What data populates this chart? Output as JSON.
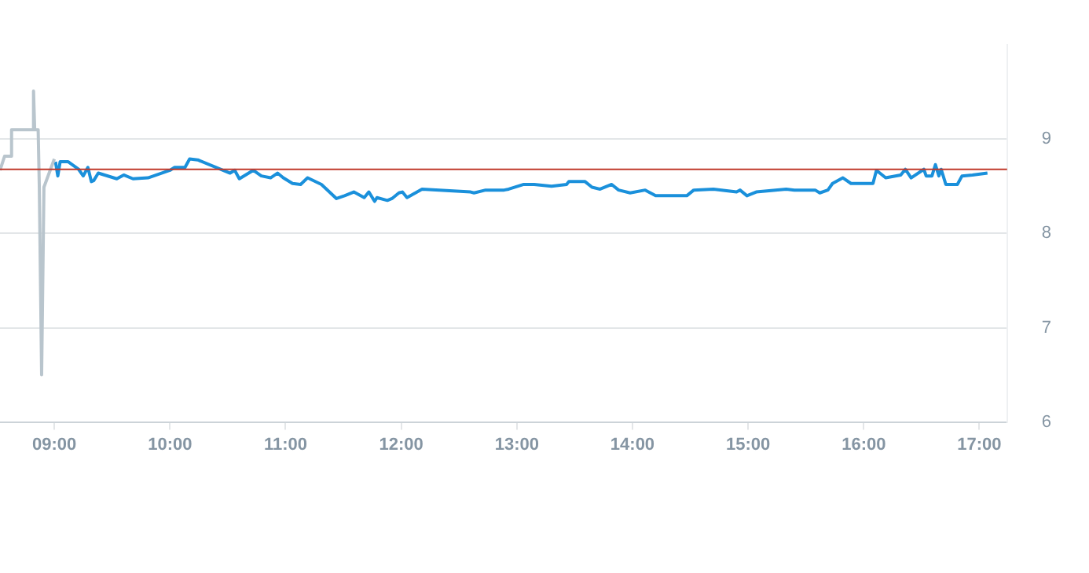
{
  "chart_data": {
    "type": "line",
    "xlim": [
      8.53,
      17.24
    ],
    "ylim": [
      6,
      10
    ],
    "xticks": [
      {
        "value": 9,
        "label": "09:00"
      },
      {
        "value": 10,
        "label": "10:00"
      },
      {
        "value": 11,
        "label": "11:00"
      },
      {
        "value": 12,
        "label": "12:00"
      },
      {
        "value": 13,
        "label": "13:00"
      },
      {
        "value": 14,
        "label": "14:00"
      },
      {
        "value": 15,
        "label": "15:00"
      },
      {
        "value": 16,
        "label": "16:00"
      },
      {
        "value": 17,
        "label": "17:00"
      }
    ],
    "yticks": [
      6,
      7,
      8,
      9
    ],
    "grid": "y",
    "legend": false,
    "marker": "none",
    "line_style": "solid",
    "ref_lines": [
      {
        "axis": "y",
        "value": 8.68,
        "color": "#c0392b"
      }
    ],
    "series": [
      {
        "color": "#b9c5cd",
        "x": [
          8.53,
          8.57,
          8.63,
          8.63,
          8.82,
          8.82,
          8.83,
          8.86,
          8.87,
          8.89,
          8.91,
          9.0
        ],
        "values": [
          8.67,
          8.82,
          8.82,
          9.1,
          9.1,
          9.51,
          9.1,
          9.1,
          8.49,
          6.5,
          8.49,
          8.79
        ]
      },
      {
        "color": "#1a90db",
        "x": [
          9.01,
          9.03,
          9.05,
          9.12,
          9.21,
          9.25,
          9.29,
          9.32,
          9.34,
          9.38,
          9.54,
          9.6,
          9.68,
          9.81,
          10.0,
          10.04,
          10.13,
          10.17,
          10.24,
          10.52,
          10.56,
          10.6,
          10.72,
          10.79,
          10.87,
          10.93,
          10.98,
          11.06,
          11.13,
          11.19,
          11.31,
          11.44,
          11.51,
          11.59,
          11.68,
          11.72,
          11.77,
          11.79,
          11.88,
          11.92,
          11.98,
          12.01,
          12.05,
          12.18,
          12.6,
          12.63,
          12.73,
          12.89,
          12.93,
          13.06,
          13.15,
          13.3,
          13.43,
          13.45,
          13.59,
          13.65,
          13.72,
          13.82,
          13.88,
          13.98,
          14.11,
          14.2,
          14.47,
          14.53,
          14.7,
          14.9,
          14.93,
          14.99,
          15.07,
          15.33,
          15.4,
          15.58,
          15.62,
          15.69,
          15.73,
          15.82,
          15.89,
          16.08,
          16.11,
          16.19,
          16.32,
          16.36,
          16.41,
          16.52,
          16.54,
          16.59,
          16.62,
          16.65,
          16.67,
          16.71,
          16.81,
          16.85,
          16.94,
          17.07
        ],
        "values": [
          8.76,
          8.61,
          8.76,
          8.76,
          8.68,
          8.61,
          8.7,
          8.55,
          8.56,
          8.64,
          8.58,
          8.62,
          8.58,
          8.59,
          8.67,
          8.7,
          8.7,
          8.79,
          8.78,
          8.64,
          8.67,
          8.58,
          8.67,
          8.61,
          8.59,
          8.64,
          8.59,
          8.53,
          8.52,
          8.59,
          8.52,
          8.37,
          8.4,
          8.44,
          8.38,
          8.44,
          8.34,
          8.38,
          8.35,
          8.37,
          8.43,
          8.44,
          8.38,
          8.47,
          8.44,
          8.43,
          8.46,
          8.46,
          8.47,
          8.52,
          8.52,
          8.5,
          8.52,
          8.55,
          8.55,
          8.49,
          8.47,
          8.52,
          8.46,
          8.43,
          8.46,
          8.4,
          8.4,
          8.46,
          8.47,
          8.44,
          8.46,
          8.4,
          8.44,
          8.47,
          8.46,
          8.46,
          8.43,
          8.46,
          8.53,
          8.59,
          8.53,
          8.53,
          8.67,
          8.59,
          8.62,
          8.68,
          8.59,
          8.68,
          8.61,
          8.61,
          8.73,
          8.61,
          8.68,
          8.52,
          8.52,
          8.61,
          8.62,
          8.64
        ]
      }
    ]
  }
}
